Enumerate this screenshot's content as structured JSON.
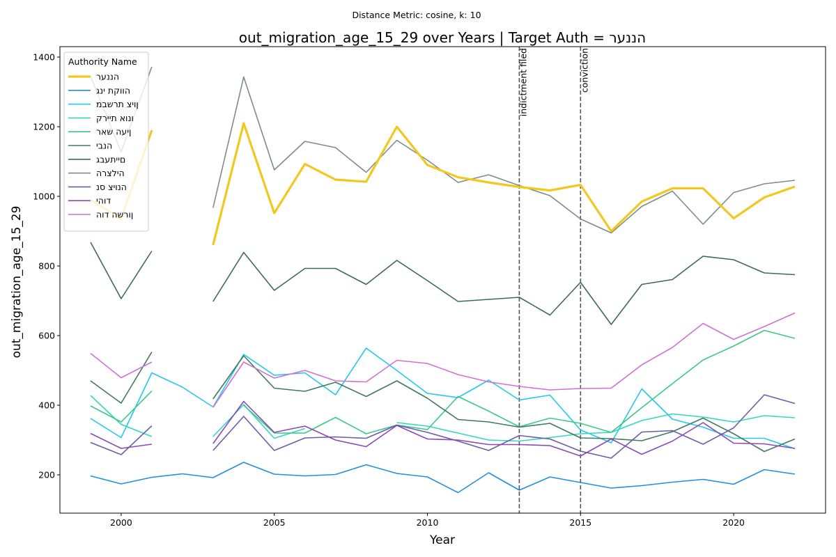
{
  "chart_data": {
    "type": "line",
    "suptitle": "Distance Metric: cosine, k: 10",
    "title": "out_migration_age_15_29 over Years | Target Auth = הננער",
    "xlabel": "Year",
    "ylabel": "out_migration_age_15_29",
    "xlim": [
      1998,
      2023
    ],
    "ylim": [
      90,
      1430
    ],
    "xticks": [
      2000,
      2005,
      2010,
      2015,
      2020
    ],
    "yticks": [
      200,
      400,
      600,
      800,
      1000,
      1200,
      1400
    ],
    "grid": false,
    "legend": {
      "title": "Authority Name",
      "placement": "upper-left"
    },
    "x": [
      1999,
      2000,
      2001,
      2002,
      2003,
      2004,
      2005,
      2006,
      2007,
      2008,
      2009,
      2010,
      2011,
      2012,
      2013,
      2014,
      2015,
      2016,
      2017,
      2018,
      2019,
      2020,
      2021,
      2022
    ],
    "events": [
      {
        "x": 2013,
        "label": "indictment filed"
      },
      {
        "x": 2015,
        "label": "conviction"
      }
    ],
    "series": [
      {
        "name": "הננער",
        "color": "#f2c81f",
        "highlight": true,
        "values": [
          990,
          935,
          1190,
          null,
          860,
          1210,
          952,
          1093,
          1048,
          1042,
          1200,
          1090,
          1055,
          1040,
          1027,
          1017,
          1033,
          900,
          985,
          1023,
          1023,
          937,
          997,
          1028
        ]
      },
      {
        "name": "הווקת ינג",
        "color": "#1e90e0",
        "values": [
          197,
          174,
          193,
          203,
          192,
          236,
          202,
          197,
          201,
          229,
          204,
          194,
          149,
          206,
          156,
          194,
          178,
          162,
          169,
          179,
          187,
          173,
          215,
          202
        ]
      },
      {
        "name": "ןויצ תרשבמ",
        "color": "#22c7ee",
        "values": [
          362,
          307,
          493,
          452,
          395,
          546,
          486,
          493,
          430,
          564,
          500,
          434,
          422,
          472,
          415,
          429,
          329,
          292,
          447,
          360,
          337,
          305,
          305,
          275
        ]
      },
      {
        "name": "ונוא תיירק",
        "color": "#2ed9bc",
        "values": [
          428,
          345,
          310,
          null,
          310,
          402,
          305,
          333,
          null,
          null,
          350,
          340,
          320,
          300,
          297,
          307,
          318,
          322,
          356,
          375,
          366,
          352,
          370,
          364
        ]
      },
      {
        "name": "ןיעה שאר",
        "color": "#3ac986",
        "values": [
          398,
          352,
          441,
          null,
          null,
          400,
          320,
          320,
          365,
          318,
          343,
          330,
          425,
          383,
          338,
          363,
          348,
          322,
          393,
          462,
          530,
          570,
          615,
          592
        ]
      },
      {
        "name": "הנבי",
        "color": "#3f7a5e",
        "values": [
          470,
          406,
          553,
          null,
          418,
          542,
          449,
          440,
          466,
          425,
          470,
          420,
          359,
          352,
          337,
          348,
          306,
          304,
          298,
          324,
          363,
          318,
          267,
          303
        ]
      },
      {
        "name": "םייתעבג",
        "color": "#3c6a58",
        "values": [
          868,
          706,
          843,
          null,
          698,
          839,
          730,
          793,
          793,
          747,
          816,
          758,
          698,
          704,
          710,
          659,
          753,
          632,
          747,
          761,
          828,
          818,
          780,
          775
        ]
      },
      {
        "name": "הילצרה",
        "color": "#7d8c87",
        "values": [
          1345,
          1128,
          1372,
          null,
          967,
          1343,
          1076,
          1158,
          1140,
          1069,
          1161,
          1104,
          1040,
          1062,
          1031,
          1002,
          935,
          895,
          971,
          1015,
          920,
          1011,
          1036,
          1046
        ]
      },
      {
        "name": "הנויצ סנ",
        "color": "#6a5da8",
        "values": [
          293,
          258,
          341,
          null,
          270,
          368,
          270,
          306,
          309,
          305,
          343,
          322,
          297,
          270,
          313,
          303,
          268,
          248,
          323,
          327,
          288,
          335,
          430,
          405
        ]
      },
      {
        "name": "דוהי",
        "color": "#8b47b8",
        "values": [
          319,
          276,
          288,
          null,
          290,
          411,
          322,
          340,
          300,
          281,
          342,
          303,
          300,
          287,
          287,
          284,
          254,
          303,
          259,
          297,
          350,
          291,
          289,
          276
        ]
      },
      {
        "name": "ןורשה דוה",
        "color": "#d070d6",
        "values": [
          549,
          479,
          524,
          null,
          394,
          524,
          478,
          500,
          470,
          467,
          529,
          520,
          488,
          467,
          454,
          444,
          448,
          449,
          516,
          566,
          635,
          589,
          626,
          665
        ]
      }
    ]
  }
}
